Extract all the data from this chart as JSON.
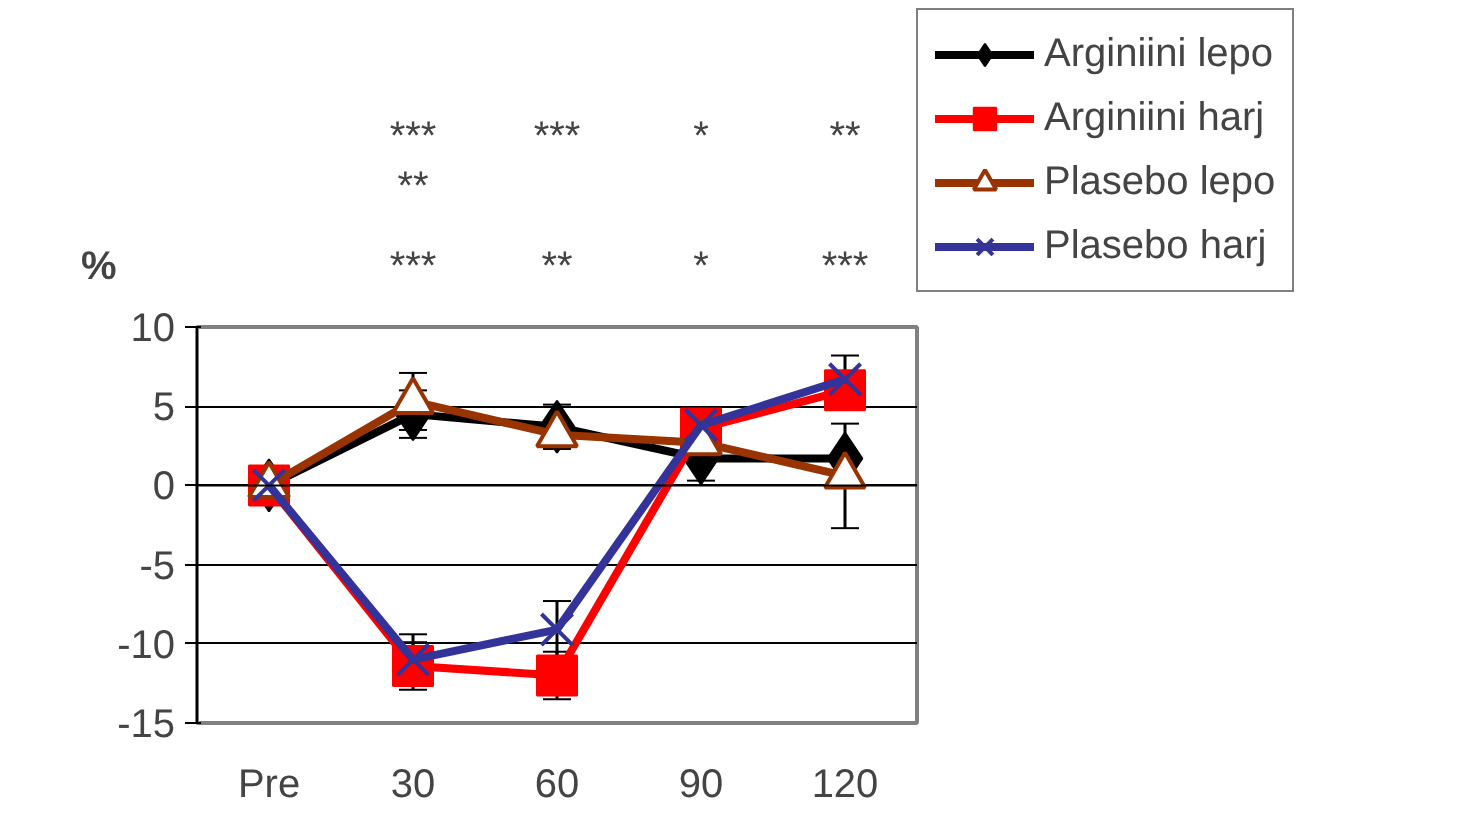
{
  "chart_data": {
    "type": "line",
    "ylabel": "%",
    "categories": [
      "Pre",
      "30",
      "60",
      "90",
      "120"
    ],
    "ylim": [
      -15,
      10
    ],
    "yticks": [
      -15,
      -10,
      -5,
      0,
      5,
      10
    ],
    "grid": "y",
    "legend": "top right",
    "series": [
      {
        "name": "Arginiini lepo",
        "color": "#000000",
        "marker": "diamond",
        "values": [
          0,
          4.5,
          3.7,
          1.7,
          1.7
        ],
        "errors": [
          null,
          1.5,
          1.4,
          1.4,
          null
        ]
      },
      {
        "name": "Arginiini harj",
        "color": "#ff0000",
        "marker": "square",
        "values": [
          0,
          -11.4,
          -12.0,
          3.6,
          6.0
        ],
        "errors": [
          null,
          1.5,
          1.5,
          null,
          null
        ]
      },
      {
        "name": "Plasebo lepo",
        "color": "#993300",
        "marker": "triangle",
        "values": [
          0,
          5.3,
          3.2,
          2.7,
          0.6
        ],
        "errors": [
          null,
          1.8,
          null,
          null,
          3.3
        ]
      },
      {
        "name": "Plasebo harj",
        "color": "#333399",
        "marker": "cross",
        "values": [
          0,
          -11.0,
          -9.1,
          3.8,
          6.7
        ],
        "errors": [
          null,
          1.6,
          1.8,
          null,
          1.5
        ]
      }
    ],
    "annotations": [
      "***",
      "***",
      "*",
      "**",
      "**",
      "***",
      "**",
      "*",
      "***"
    ]
  }
}
